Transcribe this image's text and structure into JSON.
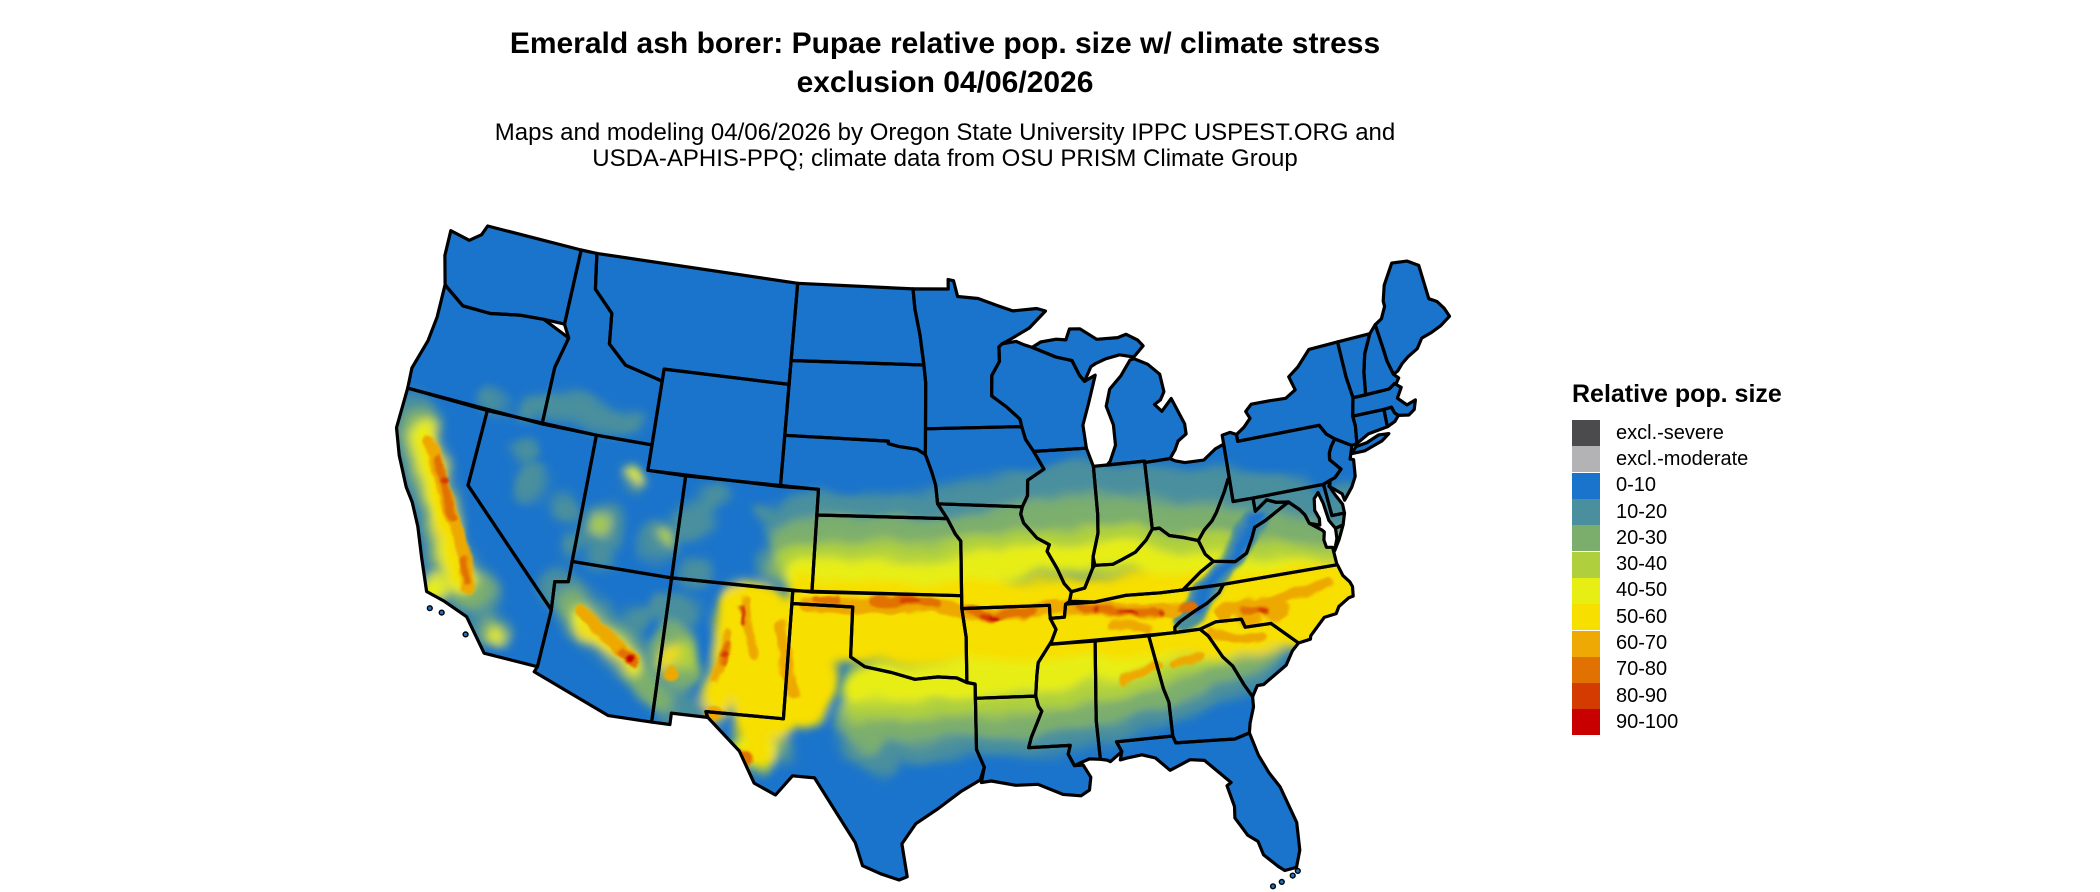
{
  "canvas": {
    "background": "#ffffff"
  },
  "title": {
    "line1": "Emerald ash borer: Pupae relative pop. size w/ climate stress",
    "line2": "exclusion 04/06/2026"
  },
  "subtitle": {
    "line1": "Maps and modeling 04/06/2026 by Oregon State University IPPC USPEST.ORG and",
    "line2": "USDA-APHIS-PPQ; climate data from OSU PRISM Climate Group"
  },
  "legend": {
    "title": "Relative pop. size",
    "items": [
      {
        "label": "excl.-severe",
        "color": "#4B4B4D"
      },
      {
        "label": "excl.-moderate",
        "color": "#B3B3B5"
      },
      {
        "label": "0-10",
        "color": "#1B74CB"
      },
      {
        "label": "10-20",
        "color": "#4A8F9E"
      },
      {
        "label": "20-30",
        "color": "#7BAE6D"
      },
      {
        "label": "30-40",
        "color": "#AFD03C"
      },
      {
        "label": "40-50",
        "color": "#E7EE13"
      },
      {
        "label": "50-60",
        "color": "#F7DF00"
      },
      {
        "label": "60-70",
        "color": "#EEA904"
      },
      {
        "label": "70-80",
        "color": "#E17101"
      },
      {
        "label": "80-90",
        "color": "#D43B01"
      },
      {
        "label": "90-100",
        "color": "#C90000"
      }
    ]
  },
  "map": {
    "region": "conterminous United States",
    "state_border_color": "#000000",
    "water_color": "#ffffff",
    "base_class": "0-10"
  }
}
